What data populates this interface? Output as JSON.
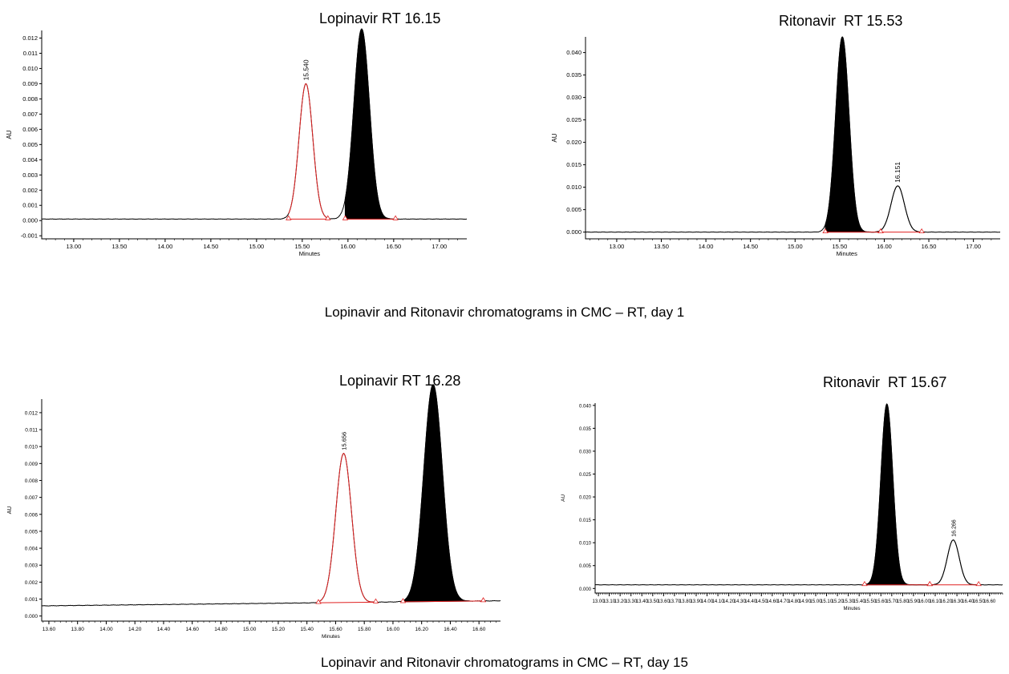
{
  "captions": [
    "Lopinavir and Ritonavir chromatograms in CMC – RT, day 1",
    "Lopinavir and Ritonavir chromatograms in CMC – RT, day 15"
  ],
  "colors": {
    "line": "#000000",
    "integrated_peak": "#e02020",
    "filled_peak": "#000000"
  },
  "chart_data": [
    {
      "type": "line",
      "title": "Lopinavir RT 16.15",
      "xlabel": "Minutes",
      "ylabel": "AU",
      "xlim": [
        12.65,
        17.3
      ],
      "ylim": [
        -0.0012,
        0.0125
      ],
      "xticks": [
        "13.00",
        "13.50",
        "14.00",
        "14.50",
        "15.00",
        "15.50",
        "16.00",
        "16.50",
        "17.00"
      ],
      "yticks": [
        "-0.001",
        "0.000",
        "0.001",
        "0.002",
        "0.003",
        "0.004",
        "0.005",
        "0.006",
        "0.007",
        "0.008",
        "0.009",
        "0.010",
        "0.011",
        "0.012"
      ],
      "baseline": 0.0001,
      "peaks": [
        {
          "rt": 15.54,
          "height": 0.0089,
          "width": 0.075,
          "style": "red-outline",
          "label": "15.540",
          "start": 15.35,
          "end": 15.78
        },
        {
          "rt": 16.15,
          "height": 0.0125,
          "width": 0.085,
          "style": "black-fill",
          "start": 15.97,
          "end": 16.52
        }
      ]
    },
    {
      "type": "line",
      "title": "Ritonavir  RT 15.53",
      "xlabel": "Minutes",
      "ylabel": "AU",
      "xlim": [
        12.65,
        17.3
      ],
      "ylim": [
        -0.0015,
        0.0435
      ],
      "xticks": [
        "13.00",
        "13.50",
        "14.00",
        "14.50",
        "15.00",
        "15.50",
        "16.00",
        "16.50",
        "17.00"
      ],
      "yticks": [
        "0.000",
        "0.005",
        "0.010",
        "0.015",
        "0.020",
        "0.025",
        "0.030",
        "0.035",
        "0.040"
      ],
      "baseline": 0.0,
      "peaks": [
        {
          "rt": 15.53,
          "height": 0.0435,
          "width": 0.075,
          "style": "black-fill",
          "start": 15.34,
          "end": 15.96
        },
        {
          "rt": 16.151,
          "height": 0.0103,
          "width": 0.075,
          "style": "black-outline",
          "label": "16.151",
          "start": 15.96,
          "end": 16.42
        }
      ]
    },
    {
      "type": "line",
      "title": "Lopinavir RT 16.28",
      "xlabel": "Minutes",
      "ylabel": "AU",
      "xlim": [
        13.55,
        16.75
      ],
      "ylim": [
        -0.0003,
        0.0128
      ],
      "xticks": [
        "13.60",
        "13.80",
        "14.00",
        "14.20",
        "14.40",
        "14.60",
        "14.80",
        "15.00",
        "15.20",
        "15.40",
        "15.60",
        "15.80",
        "16.00",
        "16.20",
        "16.40",
        "16.60"
      ],
      "yticks": [
        "0.000",
        "0.001",
        "0.002",
        "0.003",
        "0.004",
        "0.005",
        "0.006",
        "0.007",
        "0.008",
        "0.009",
        "0.010",
        "0.011",
        "0.012"
      ],
      "baseline_start": 0.0006,
      "baseline_end": 0.0009,
      "peaks": [
        {
          "rt": 15.656,
          "height": 0.0088,
          "width": 0.055,
          "style": "red-outline",
          "label": "15.656",
          "start": 15.48,
          "end": 15.88
        },
        {
          "rt": 16.28,
          "height": 0.0128,
          "width": 0.065,
          "style": "black-fill",
          "start": 16.07,
          "end": 16.63
        }
      ]
    },
    {
      "type": "line",
      "title": "Ritonavir  RT 15.67",
      "xlabel": "Minutes",
      "ylabel": "AU",
      "xlim": [
        12.97,
        16.72
      ],
      "ylim": [
        -0.001,
        0.0405
      ],
      "xticks": [
        "13.00",
        "13.10",
        "13.20",
        "13.30",
        "13.40",
        "13.50",
        "13.60",
        "13.70",
        "13.80",
        "13.90",
        "14.00",
        "14.10",
        "14.20",
        "14.30",
        "14.40",
        "14.50",
        "14.60",
        "14.70",
        "14.80",
        "14.90",
        "15.00",
        "15.10",
        "15.20",
        "15.30",
        "15.40",
        "15.50",
        "15.60",
        "15.70",
        "15.80",
        "15.90",
        "16.00",
        "16.10",
        "16.20",
        "16.30",
        "16.40",
        "16.50",
        "16.60"
      ],
      "yticks": [
        "0.000",
        "0.005",
        "0.010",
        "0.015",
        "0.020",
        "0.025",
        "0.030",
        "0.035",
        "0.040"
      ],
      "baseline": 0.0008,
      "peaks": [
        {
          "rt": 15.655,
          "height": 0.0395,
          "width": 0.055,
          "style": "black-fill",
          "start": 15.45,
          "end": 16.05
        },
        {
          "rt": 16.266,
          "height": 0.0098,
          "width": 0.055,
          "style": "black-outline",
          "label": "16.266",
          "start": 16.05,
          "end": 16.5
        }
      ]
    }
  ]
}
